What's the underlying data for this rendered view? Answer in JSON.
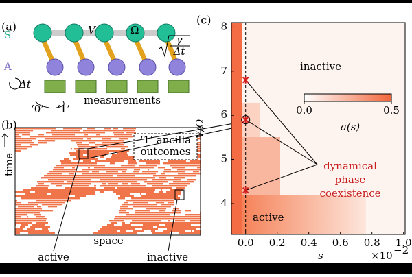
{
  "panel_a": {
    "label": "(a)",
    "system_label": "S",
    "ancilla_label": "A",
    "coupling": "V",
    "drive": "Ω",
    "rate_numerator": "γ",
    "rate_denominator": "Δt",
    "step": "Δt",
    "outcome_0": "‘0’",
    "outcome_1": "‘1’",
    "measurements": "measurements"
  },
  "panel_b": {
    "label": "(b)",
    "legend": [
      "‘1’ ancilla",
      "outcomes"
    ],
    "time": "time",
    "space": "space",
    "active": "active",
    "inactive": "inactive"
  },
  "panel_c": {
    "label": "(c)",
    "xlabel": "s",
    "xscale_base": "×10",
    "xscale_exp": "−2",
    "ylabel": "V/Ω",
    "xlim": [
      -0.09,
      1.01
    ],
    "ylim": [
      3.3,
      8.1
    ],
    "xticks": [
      {
        "value": 0,
        "label": "0.0"
      },
      {
        "value": 0.2,
        "label": "0.2"
      },
      {
        "value": 0.4,
        "label": "0.4"
      },
      {
        "value": 0.6,
        "label": "0.6"
      },
      {
        "value": 0.8,
        "label": "0.8"
      },
      {
        "value": 1,
        "label": "1.0"
      }
    ],
    "yticks": [
      4,
      5,
      6,
      7,
      8
    ],
    "colorbar_label": "a(s)",
    "colorbar_lim": [
      0,
      0.5
    ],
    "colorbar_ticks": [
      {
        "value": 0,
        "label": "0.0"
      },
      {
        "value": 0.5,
        "label": "0.5"
      }
    ],
    "inactive_label": "inactive",
    "active_label": "active",
    "coexistence_label": [
      "dynamical",
      "phase",
      "coexistence"
    ],
    "coexistence_points": [
      6.8,
      5.9,
      4.3
    ]
  }
}
